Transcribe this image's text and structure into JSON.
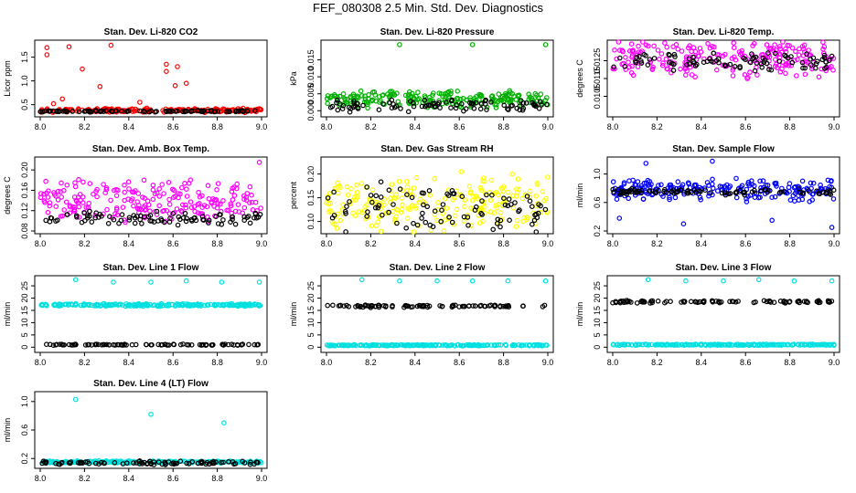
{
  "main_title": "FEF_080308  2.5 Min. Std. Dev. Diagnostics",
  "chart_data": [
    {
      "type": "scatter",
      "title": "Stan. Dev. Li-820 CO2",
      "ylabel": "Licor ppm",
      "xlim": [
        8.0,
        9.0
      ],
      "ylim": [
        0.3,
        1.8
      ],
      "xticks": [
        "8.0",
        "8.2",
        "8.4",
        "8.6",
        "8.8",
        "9.0"
      ],
      "yticks": [
        0.5,
        1.0,
        1.5
      ],
      "ytick_labels": [
        "0.5",
        "1.0",
        "1.5"
      ],
      "series": [
        {
          "name": "colored",
          "color": "#ff0000",
          "base": 0.38,
          "spread": 0.05,
          "spikes": [
            [
              8.03,
              1.7
            ],
            [
              8.03,
              1.55
            ],
            [
              8.13,
              1.72
            ],
            [
              8.19,
              1.25
            ],
            [
              8.32,
              1.75
            ],
            [
              8.57,
              1.35
            ],
            [
              8.57,
              1.2
            ],
            [
              8.62,
              1.3
            ],
            [
              8.61,
              0.9
            ],
            [
              8.27,
              0.88
            ],
            [
              8.1,
              0.62
            ],
            [
              8.45,
              0.55
            ],
            [
              8.66,
              0.95
            ],
            [
              8.06,
              0.52
            ]
          ]
        },
        {
          "name": "black",
          "color": "#000000",
          "base": 0.36,
          "spread": 0.02
        }
      ]
    },
    {
      "type": "scatter",
      "title": "Stan. Dev. Li-820 Pressure",
      "ylabel": "kPa",
      "xlim": [
        8.0,
        9.0
      ],
      "ylim": [
        -0.001,
        0.02
      ],
      "xticks": [
        "8.0",
        "8.2",
        "8.4",
        "8.6",
        "8.8",
        "9.0"
      ],
      "yticks": [
        0.0,
        0.005,
        0.01,
        0.015
      ],
      "ytick_labels": [
        "0.000",
        "0.005",
        "0.010",
        "0.015"
      ],
      "series": [
        {
          "name": "colored",
          "color": "#00b000",
          "base": 0.0035,
          "spread": 0.003,
          "spikes": [
            [
              8.33,
              0.0195
            ],
            [
              8.66,
              0.0195
            ],
            [
              8.99,
              0.0195
            ]
          ]
        },
        {
          "name": "black",
          "color": "#000000",
          "base": 0.0015,
          "spread": 0.002
        }
      ]
    },
    {
      "type": "scatter",
      "title": "Stan. Dev. Li-820 Temp.",
      "ylabel": "degrees C",
      "xlim": [
        8.0,
        9.0
      ],
      "ylim": [
        0.0095,
        0.0135
      ],
      "xticks": [
        "8.0",
        "8.2",
        "8.4",
        "8.6",
        "8.8",
        "9.0"
      ],
      "yticks": [
        0.0105,
        0.0115,
        0.0125
      ],
      "ytick_labels": [
        "0.0105",
        "0.0115",
        "0.0125"
      ],
      "series": [
        {
          "name": "colored",
          "color": "#ff00ff",
          "base": 0.0126,
          "spread": 0.0012
        },
        {
          "name": "black",
          "color": "#000000",
          "base": 0.0124,
          "spread": 0.0006
        }
      ]
    },
    {
      "type": "scatter",
      "title": "Stan. Dev. Amb. Box Temp.",
      "ylabel": "degrees C",
      "xlim": [
        8.0,
        9.0
      ],
      "ylim": [
        0.08,
        0.22
      ],
      "xticks": [
        "8.0",
        "8.2",
        "8.4",
        "8.6",
        "8.8",
        "9.0"
      ],
      "yticks": [
        0.08,
        0.12,
        0.16,
        0.2
      ],
      "ytick_labels": [
        "0.08",
        "0.12",
        "0.16",
        "0.20"
      ],
      "series": [
        {
          "name": "colored",
          "color": "#ff00ff",
          "base": 0.14,
          "spread": 0.05,
          "spikes": [
            [
              8.99,
              0.215
            ]
          ]
        },
        {
          "name": "black",
          "color": "#000000",
          "base": 0.105,
          "spread": 0.015
        }
      ]
    },
    {
      "type": "scatter",
      "title": "Stan. Dev. Gas Stream RH",
      "ylabel": "percent",
      "xlim": [
        8.0,
        9.0
      ],
      "ylim": [
        0.08,
        0.23
      ],
      "xticks": [
        "8.0",
        "8.2",
        "8.4",
        "8.6",
        "8.8",
        "9.0"
      ],
      "yticks": [
        0.1,
        0.15,
        0.2
      ],
      "ytick_labels": [
        "0.10",
        "0.15",
        "0.20"
      ],
      "series": [
        {
          "name": "colored",
          "color": "#ffff00",
          "base": 0.14,
          "spread": 0.07
        },
        {
          "name": "black",
          "color": "#000000",
          "base": 0.13,
          "spread": 0.06
        }
      ]
    },
    {
      "type": "scatter",
      "title": "Stan. Dev. Sample Flow",
      "ylabel": "ml/min",
      "xlim": [
        8.0,
        9.0
      ],
      "ylim": [
        0.2,
        1.2
      ],
      "xticks": [
        "8.0",
        "8.2",
        "8.4",
        "8.6",
        "8.8",
        "9.0"
      ],
      "yticks": [
        0.2,
        0.6,
        1.0
      ],
      "ytick_labels": [
        "0.2",
        "0.6",
        "1.0"
      ],
      "series": [
        {
          "name": "colored",
          "color": "#0000ff",
          "base": 0.78,
          "spread": 0.18,
          "spikes": [
            [
              8.15,
              1.15
            ],
            [
              8.45,
              1.18
            ],
            [
              8.99,
              0.25
            ],
            [
              8.72,
              0.35
            ],
            [
              8.32,
              0.3
            ],
            [
              8.03,
              0.38
            ]
          ]
        },
        {
          "name": "black",
          "color": "#000000",
          "base": 0.75,
          "spread": 0.05
        }
      ]
    },
    {
      "type": "scatter",
      "title": "Stan. Dev. Line 1 Flow",
      "ylabel": "ml/min",
      "xlim": [
        8.0,
        9.0
      ],
      "ylim": [
        -1,
        28
      ],
      "xticks": [
        "8.0",
        "8.2",
        "8.4",
        "8.6",
        "8.8",
        "9.0"
      ],
      "yticks": [
        0,
        5,
        10,
        15,
        20,
        25
      ],
      "ytick_labels": [
        "0",
        "5",
        "10",
        "15",
        "20",
        "25"
      ],
      "series": [
        {
          "name": "colored",
          "color": "#00e0e0",
          "base": 17.2,
          "spread": 0.6,
          "spikes": [
            [
              8.16,
              27.5
            ],
            [
              8.33,
              26.5
            ],
            [
              8.5,
              26.5
            ],
            [
              8.66,
              27
            ],
            [
              8.82,
              26.5
            ],
            [
              8.99,
              26.5
            ]
          ]
        },
        {
          "name": "black",
          "color": "#000000",
          "base": 1.0,
          "spread": 0.3
        }
      ]
    },
    {
      "type": "scatter",
      "title": "Stan. Dev. Line 2 Flow",
      "ylabel": "ml/min",
      "xlim": [
        8.0,
        9.0
      ],
      "ylim": [
        -1,
        28
      ],
      "xticks": [
        "8.0",
        "8.2",
        "8.4",
        "8.6",
        "8.8",
        "9.0"
      ],
      "yticks": [
        0,
        5,
        10,
        15,
        20,
        25
      ],
      "ytick_labels": [
        "0",
        "5",
        "10",
        "15",
        "20",
        "25"
      ],
      "series": [
        {
          "name": "colored",
          "color": "#00e0e0",
          "base": 0.8,
          "spread": 0.3,
          "spikes": [
            [
              8.16,
              27.5
            ],
            [
              8.33,
              27
            ],
            [
              8.5,
              27
            ],
            [
              8.66,
              27
            ],
            [
              8.82,
              27
            ],
            [
              8.99,
              27
            ]
          ]
        },
        {
          "name": "black",
          "color": "#000000",
          "base": 16.7,
          "spread": 0.6
        }
      ]
    },
    {
      "type": "scatter",
      "title": "Stan. Dev. Line 3 Flow",
      "ylabel": "ml/min",
      "xlim": [
        8.0,
        9.0
      ],
      "ylim": [
        -1,
        28
      ],
      "xticks": [
        "8.0",
        "8.2",
        "8.4",
        "8.6",
        "8.8",
        "9.0"
      ],
      "yticks": [
        0,
        5,
        10,
        15,
        20,
        25
      ],
      "ytick_labels": [
        "0",
        "5",
        "10",
        "15",
        "20",
        "25"
      ],
      "series": [
        {
          "name": "colored",
          "color": "#00e0e0",
          "base": 1.0,
          "spread": 0.3,
          "spikes": [
            [
              8.16,
              27.5
            ],
            [
              8.33,
              27
            ],
            [
              8.5,
              27
            ],
            [
              8.66,
              27.5
            ],
            [
              8.82,
              27
            ],
            [
              8.99,
              27
            ]
          ]
        },
        {
          "name": "black",
          "color": "#000000",
          "base": 18.5,
          "spread": 0.6
        }
      ]
    },
    {
      "type": "scatter",
      "title": "Stan. Dev. Line 4 (LT) Flow",
      "ylabel": "ml/min",
      "xlim": [
        8.0,
        9.0
      ],
      "ylim": [
        0.1,
        1.1
      ],
      "xticks": [
        "8.0",
        "8.2",
        "8.4",
        "8.6",
        "8.8",
        "9.0"
      ],
      "yticks": [
        0.2,
        0.6,
        1.0
      ],
      "ytick_labels": [
        "0.2",
        "0.6",
        "1.0"
      ],
      "series": [
        {
          "name": "colored",
          "color": "#00e0e0",
          "base": 0.15,
          "spread": 0.02,
          "spikes": [
            [
              8.16,
              1.03
            ],
            [
              8.5,
              0.82
            ],
            [
              8.83,
              0.7
            ]
          ]
        },
        {
          "name": "black",
          "color": "#000000",
          "base": 0.14,
          "spread": 0.03
        }
      ]
    }
  ]
}
